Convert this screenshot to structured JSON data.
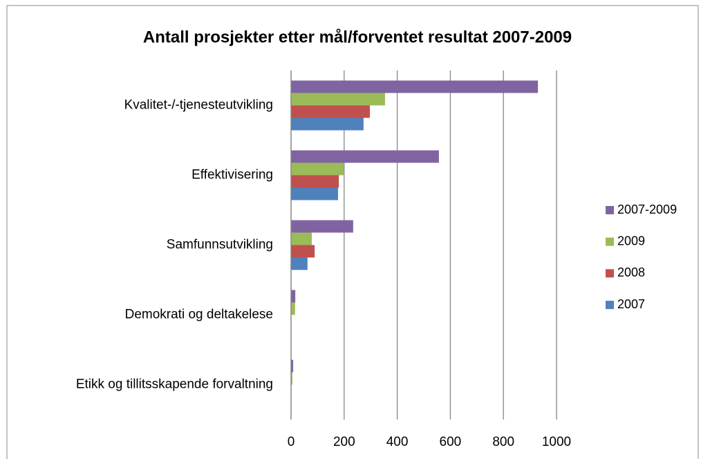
{
  "chart_data": {
    "type": "bar",
    "orientation": "horizontal",
    "title": "Antall prosjekter etter mål/forventet resultat 2007-2009",
    "categories": [
      "Kvalitet-/-tjenesteutvikling",
      "Effektivisering",
      "Samfunnsutvikling",
      "Demokrati og deltakelese",
      "Etikk og tillitsskapende forvaltning"
    ],
    "series": [
      {
        "name": "2007-2009",
        "color": "#8064a2",
        "values": [
          930,
          557,
          234,
          16,
          8
        ]
      },
      {
        "name": "2009",
        "color": "#9bbb59",
        "values": [
          354,
          198,
          78,
          15,
          5
        ]
      },
      {
        "name": "2008",
        "color": "#c0504d",
        "values": [
          297,
          180,
          89,
          0,
          0
        ]
      },
      {
        "name": "2007",
        "color": "#4f81bd",
        "values": [
          273,
          177,
          62,
          0,
          1
        ]
      }
    ],
    "xlim": [
      0,
      1000
    ],
    "xticks": [
      0,
      200,
      400,
      600,
      800,
      1000
    ],
    "grid": true,
    "legend": "right"
  }
}
